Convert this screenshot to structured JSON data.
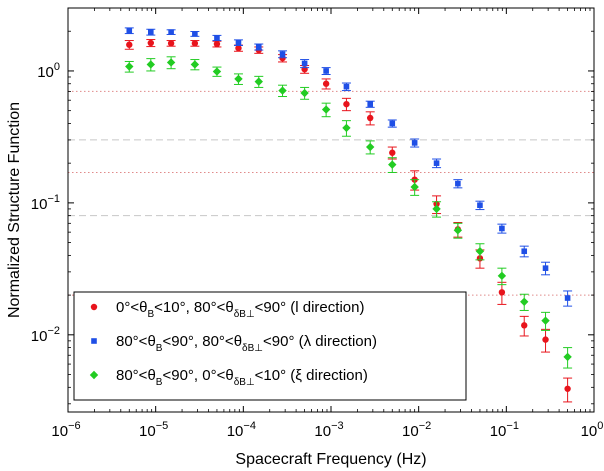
{
  "chart_data": {
    "type": "scatter",
    "title": "",
    "xlabel": "Spacecraft Frequency (Hz)",
    "ylabel": "Normalized Structure Function",
    "xscale": "log",
    "yscale": "log",
    "xlim": [
      1e-06,
      1
    ],
    "ylim": [
      0.0026,
      3.0
    ],
    "x_ticks": [
      {
        "value": 1e-06,
        "base": "10",
        "exp": "−6"
      },
      {
        "value": 1e-05,
        "base": "10",
        "exp": "−5"
      },
      {
        "value": 0.0001,
        "base": "10",
        "exp": "−4"
      },
      {
        "value": 0.001,
        "base": "10",
        "exp": "−3"
      },
      {
        "value": 0.01,
        "base": "10",
        "exp": "−2"
      },
      {
        "value": 0.1,
        "base": "10",
        "exp": "−1"
      },
      {
        "value": 1,
        "base": "10",
        "exp": "0"
      }
    ],
    "y_ticks": [
      {
        "value": 0.01,
        "base": "10",
        "exp": "−2"
      },
      {
        "value": 0.1,
        "base": "10",
        "exp": "−1"
      },
      {
        "value": 1,
        "base": "10",
        "exp": "0"
      }
    ],
    "reference_lines": [
      {
        "y": 0.7,
        "style": "dotted",
        "color": "#e08a8a"
      },
      {
        "y": 0.3,
        "style": "dashed",
        "color": "#c8c8c8"
      },
      {
        "y": 0.17,
        "style": "dotted",
        "color": "#e08a8a"
      },
      {
        "y": 0.08,
        "style": "dashed",
        "color": "#c8c8c8"
      },
      {
        "y": 0.02,
        "style": "dotted",
        "color": "#e08a8a"
      }
    ],
    "legend": {
      "position": "bottom-left",
      "entries": [
        {
          "series_index": 0,
          "parts": [
            "0°<θ",
            "B",
            "<10°, 80°<θ",
            "δB⊥",
            "<90° (l direction)"
          ]
        },
        {
          "series_index": 1,
          "parts": [
            "80°<θ",
            "B",
            "<90°, 80°<θ",
            "δB⊥",
            "<90° (λ direction)"
          ]
        },
        {
          "series_index": 2,
          "parts": [
            "80°<θ",
            "B",
            "<90°, 0°<θ",
            "δB⊥",
            "<10° (ξ direction)"
          ]
        }
      ]
    },
    "series": [
      {
        "marker": "circle",
        "color": "#e8141c",
        "points": [
          {
            "x": 5e-06,
            "y": 1.58,
            "err": 0.12
          },
          {
            "x": 8.8e-06,
            "y": 1.63,
            "err": 0.1
          },
          {
            "x": 1.5e-05,
            "y": 1.62,
            "err": 0.08
          },
          {
            "x": 2.8e-05,
            "y": 1.62,
            "err": 0.08
          },
          {
            "x": 5e-05,
            "y": 1.6,
            "err": 0.08
          },
          {
            "x": 8.8e-05,
            "y": 1.49,
            "err": 0.08
          },
          {
            "x": 0.00015,
            "y": 1.44,
            "err": 0.08
          },
          {
            "x": 0.00028,
            "y": 1.25,
            "err": 0.08
          },
          {
            "x": 0.0005,
            "y": 1.03,
            "err": 0.07
          },
          {
            "x": 0.00088,
            "y": 0.8,
            "err": 0.07
          },
          {
            "x": 0.0015,
            "y": 0.56,
            "err": 0.06
          },
          {
            "x": 0.0028,
            "y": 0.44,
            "err": 0.05
          },
          {
            "x": 0.005,
            "y": 0.24,
            "err": 0.025
          },
          {
            "x": 0.009,
            "y": 0.15,
            "err": 0.025
          },
          {
            "x": 0.016,
            "y": 0.098,
            "err": 0.015
          },
          {
            "x": 0.028,
            "y": 0.063,
            "err": 0.008
          },
          {
            "x": 0.05,
            "y": 0.038,
            "err": 0.006
          },
          {
            "x": 0.089,
            "y": 0.021,
            "err": 0.004
          },
          {
            "x": 0.16,
            "y": 0.0118,
            "err": 0.002
          },
          {
            "x": 0.28,
            "y": 0.0092,
            "err": 0.0018
          },
          {
            "x": 0.5,
            "y": 0.0039,
            "err": 0.0008
          }
        ]
      },
      {
        "marker": "square",
        "color": "#1f4fe6",
        "points": [
          {
            "x": 5e-06,
            "y": 2.02,
            "err": 0.1
          },
          {
            "x": 8.8e-06,
            "y": 1.97,
            "err": 0.1
          },
          {
            "x": 1.5e-05,
            "y": 1.97,
            "err": 0.08
          },
          {
            "x": 2.8e-05,
            "y": 1.91,
            "err": 0.08
          },
          {
            "x": 5e-05,
            "y": 1.78,
            "err": 0.08
          },
          {
            "x": 8.8e-05,
            "y": 1.64,
            "err": 0.08
          },
          {
            "x": 0.00015,
            "y": 1.52,
            "err": 0.08
          },
          {
            "x": 0.00028,
            "y": 1.34,
            "err": 0.08
          },
          {
            "x": 0.0005,
            "y": 1.14,
            "err": 0.08
          },
          {
            "x": 0.00088,
            "y": 1.0,
            "err": 0.06
          },
          {
            "x": 0.0015,
            "y": 0.76,
            "err": 0.05
          },
          {
            "x": 0.0028,
            "y": 0.56,
            "err": 0.03
          },
          {
            "x": 0.005,
            "y": 0.4,
            "err": 0.025
          },
          {
            "x": 0.009,
            "y": 0.285,
            "err": 0.02
          },
          {
            "x": 0.016,
            "y": 0.2,
            "err": 0.015
          },
          {
            "x": 0.028,
            "y": 0.14,
            "err": 0.01
          },
          {
            "x": 0.05,
            "y": 0.096,
            "err": 0.007
          },
          {
            "x": 0.089,
            "y": 0.064,
            "err": 0.005
          },
          {
            "x": 0.16,
            "y": 0.043,
            "err": 0.004
          },
          {
            "x": 0.28,
            "y": 0.032,
            "err": 0.0035
          },
          {
            "x": 0.5,
            "y": 0.019,
            "err": 0.0025
          }
        ]
      },
      {
        "marker": "diamond",
        "color": "#22cc22",
        "points": [
          {
            "x": 5e-06,
            "y": 1.08,
            "err": 0.1
          },
          {
            "x": 8.8e-06,
            "y": 1.12,
            "err": 0.12
          },
          {
            "x": 1.5e-05,
            "y": 1.16,
            "err": 0.12
          },
          {
            "x": 2.8e-05,
            "y": 1.12,
            "err": 0.1
          },
          {
            "x": 5e-05,
            "y": 0.99,
            "err": 0.08
          },
          {
            "x": 8.8e-05,
            "y": 0.87,
            "err": 0.08
          },
          {
            "x": 0.00015,
            "y": 0.83,
            "err": 0.08
          },
          {
            "x": 0.00028,
            "y": 0.71,
            "err": 0.07
          },
          {
            "x": 0.0005,
            "y": 0.68,
            "err": 0.07
          },
          {
            "x": 0.00088,
            "y": 0.51,
            "err": 0.06
          },
          {
            "x": 0.0015,
            "y": 0.37,
            "err": 0.05
          },
          {
            "x": 0.0028,
            "y": 0.265,
            "err": 0.03
          },
          {
            "x": 0.005,
            "y": 0.195,
            "err": 0.025
          },
          {
            "x": 0.009,
            "y": 0.132,
            "err": 0.018
          },
          {
            "x": 0.016,
            "y": 0.09,
            "err": 0.012
          },
          {
            "x": 0.028,
            "y": 0.062,
            "err": 0.008
          },
          {
            "x": 0.05,
            "y": 0.043,
            "err": 0.006
          },
          {
            "x": 0.089,
            "y": 0.028,
            "err": 0.004
          },
          {
            "x": 0.16,
            "y": 0.0178,
            "err": 0.0025
          },
          {
            "x": 0.28,
            "y": 0.0128,
            "err": 0.002
          },
          {
            "x": 0.5,
            "y": 0.0068,
            "err": 0.0012
          }
        ]
      }
    ]
  }
}
